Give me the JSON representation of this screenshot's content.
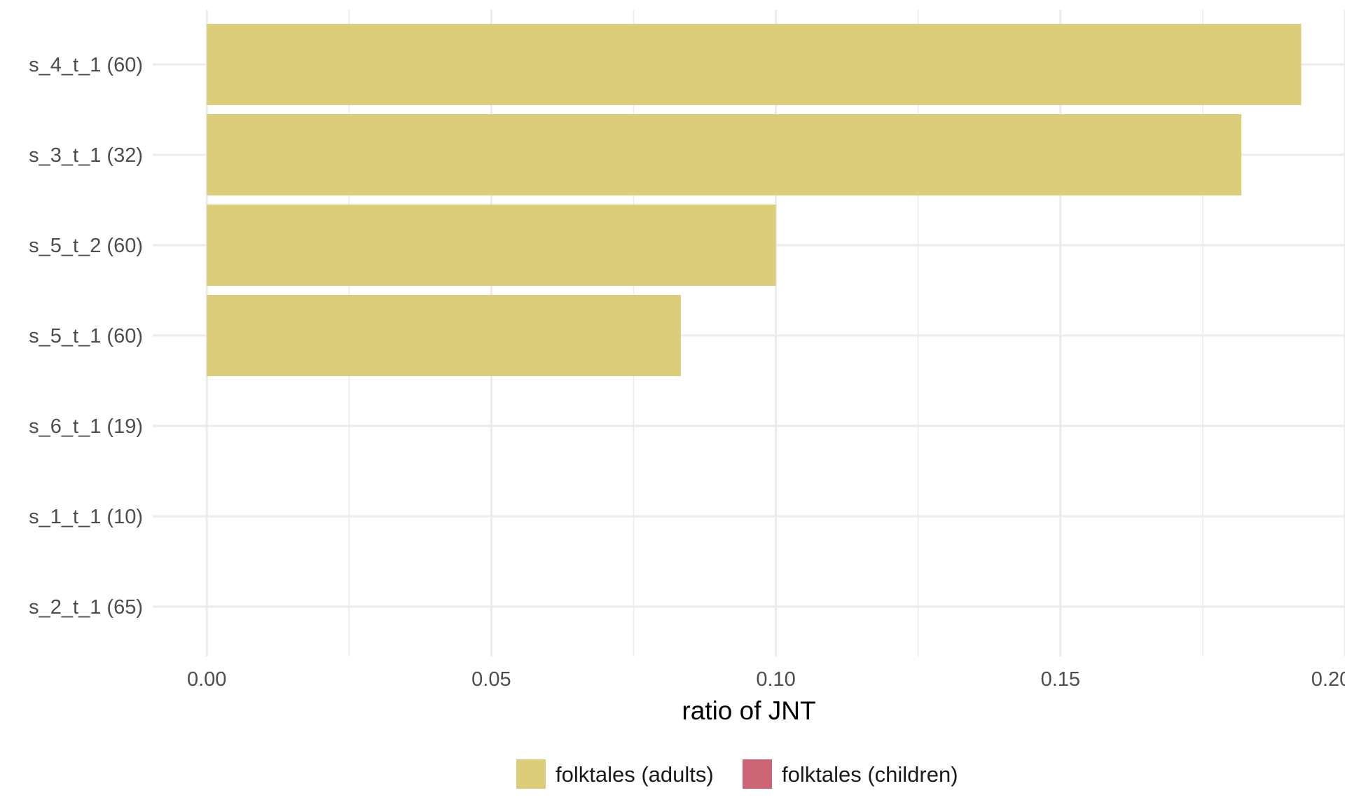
{
  "chart_data": {
    "type": "bar",
    "orientation": "horizontal",
    "title": "",
    "xlabel": "ratio of JNT",
    "ylabel": "",
    "xlim": [
      -0.0095,
      0.2
    ],
    "x_ticks": [
      "0.00",
      "0.05",
      "0.10",
      "0.15",
      "0.20"
    ],
    "categories": [
      "s_4_t_1 (60)",
      "s_3_t_1 (32)",
      "s_5_t_2 (60)",
      "s_5_t_1 (60)",
      "s_6_t_1 (19)",
      "s_1_t_1 (10)",
      "s_2_t_1 (65)"
    ],
    "series": [
      {
        "name": "folktales (adults)",
        "color": "#dccd7a",
        "values": [
          0.1923,
          0.1818,
          0.1,
          0.0833,
          0,
          0,
          0
        ]
      },
      {
        "name": "folktales (children)",
        "color": "#cc6677",
        "values": [
          0,
          0,
          0,
          0,
          0,
          0,
          0
        ]
      }
    ],
    "grid": true,
    "legend_position": "bottom"
  }
}
